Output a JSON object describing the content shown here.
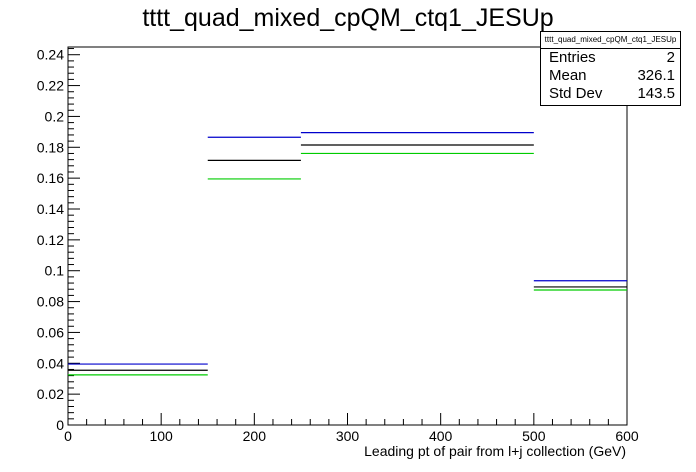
{
  "title": "tttt_quad_mixed_cpQM_ctq1_JESUp",
  "stats": {
    "name": "tttt_quad_mixed_cpQM_ctq1_JESUp",
    "rows": [
      {
        "label": "Entries",
        "value": "2"
      },
      {
        "label": "Mean",
        "value": "326.1"
      },
      {
        "label": "Std Dev",
        "value": "143.5"
      }
    ]
  },
  "chart_data": {
    "type": "bar",
    "title": "tttt_quad_mixed_cpQM_ctq1_JESUp",
    "xlabel": "Leading pt of pair from l+j collection (GeV)",
    "ylabel": "",
    "xlim": [
      0,
      600
    ],
    "ylim": [
      0,
      0.245
    ],
    "bin_edges": [
      0,
      150,
      250,
      500,
      600
    ],
    "xticks": [
      0,
      100,
      200,
      300,
      400,
      500,
      600
    ],
    "yticks": [
      0,
      0.02,
      0.04,
      0.06,
      0.08,
      0.1,
      0.12,
      0.14,
      0.16,
      0.18,
      0.2,
      0.22,
      0.24
    ],
    "series": [
      {
        "color": "#0000cc",
        "values": [
          0.0395,
          0.1865,
          0.1895,
          0.0935
        ]
      },
      {
        "color": "#000000",
        "values": [
          0.0355,
          0.1715,
          0.1815,
          0.0895
        ]
      },
      {
        "color": "#00cc00",
        "values": [
          0.0325,
          0.1595,
          0.176,
          0.0875
        ]
      }
    ],
    "grid": false,
    "legend": "top-right"
  }
}
